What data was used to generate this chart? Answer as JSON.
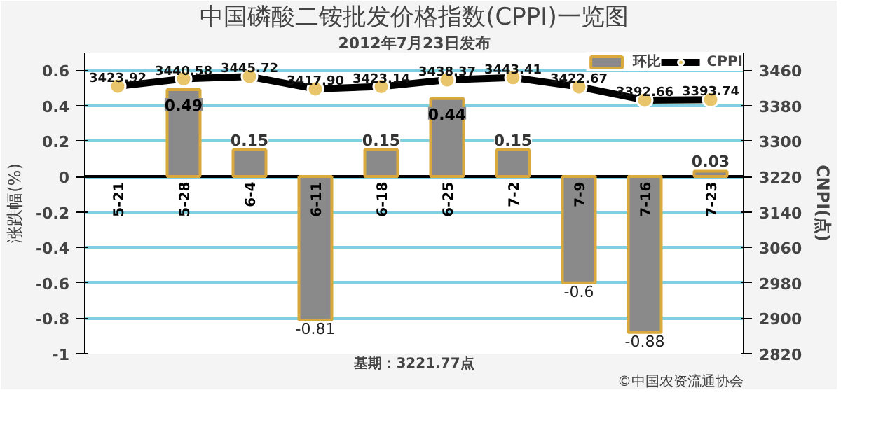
{
  "chart_data": {
    "type": "bar",
    "title": "中国磷酸二铵批发价格指数(CPPI)一览图",
    "subtitle": "2012年7月23日发布",
    "ylabel": "涨跌幅(%)",
    "y2label": "CNPI(点)",
    "categories": [
      "5-21",
      "5-28",
      "6-4",
      "6-11",
      "6-18",
      "6-25",
      "7-2",
      "7-9",
      "7-16",
      "7-23"
    ],
    "series": [
      {
        "name": "环比",
        "color": "#8a8a8a",
        "values": [
          null,
          0.49,
          0.15,
          -0.81,
          0.15,
          0.44,
          0.15,
          -0.6,
          -0.88,
          0.03
        ],
        "value_labels": [
          null,
          "0.49",
          "0.15",
          "-0.81",
          "0.15",
          "0.44",
          "0.15",
          "-0.6",
          "-0.88",
          "0.03"
        ]
      },
      {
        "name": "CPPI",
        "type": "line",
        "axis": "y2",
        "color": "#000000",
        "values": [
          3423.92,
          3440.58,
          3445.72,
          3417.9,
          3423.14,
          3438.37,
          3443.41,
          3422.67,
          3392.66,
          3393.74
        ],
        "value_labels": [
          "3423.92",
          "3440.58",
          "3445.72",
          "3417.90",
          "3423.14",
          "3438.37",
          "3443.41",
          "3422.67",
          "3392.66",
          "3393.74"
        ]
      }
    ],
    "ylim": [
      -1,
      0.7
    ],
    "yticks": [
      -1,
      -0.8,
      -0.6,
      -0.4,
      -0.2,
      0,
      0.2,
      0.4,
      0.6
    ],
    "y2lim": [
      2820,
      3500
    ],
    "y2ticks": [
      2820,
      2900,
      2980,
      3060,
      3140,
      3220,
      3300,
      3380,
      3460
    ],
    "grid": "y",
    "legend": "top right",
    "marker": "circle",
    "annotations": [
      "基期：3221.77点",
      "©中国农资流通协会"
    ]
  }
}
